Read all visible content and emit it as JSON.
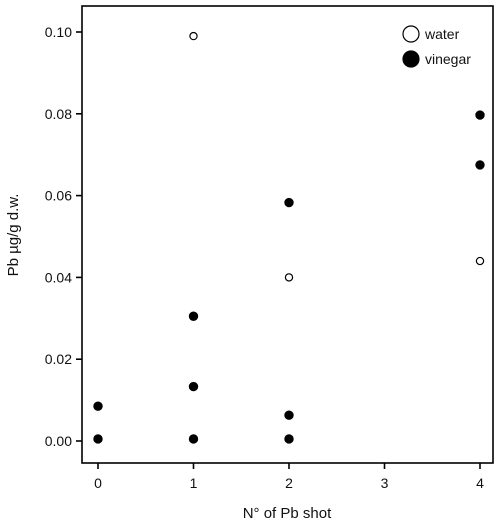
{
  "chart_data": {
    "type": "scatter",
    "title": "",
    "xlabel": "N° of Pb shot",
    "ylabel": "Pb µg/g d.w.",
    "xlim": [
      -0.2,
      4.1
    ],
    "ylim": [
      -0.005,
      0.105
    ],
    "x_ticks": [
      0,
      1,
      2,
      3,
      4
    ],
    "y_ticks": [
      0.0,
      0.02,
      0.04,
      0.06,
      0.08,
      0.1
    ],
    "y_tick_labels": [
      "0.00",
      "0.02",
      "0.04",
      "0.06",
      "0.08",
      "0.10"
    ],
    "grid": false,
    "legend_position": "top-right",
    "series": [
      {
        "name": "water",
        "marker": "open-circle",
        "color": "#000000",
        "points": [
          {
            "x": 1,
            "y": 0.099
          },
          {
            "x": 2,
            "y": 0.04
          },
          {
            "x": 4,
            "y": 0.044
          }
        ]
      },
      {
        "name": "vinegar",
        "marker": "filled-circle",
        "color": "#000000",
        "points": [
          {
            "x": 0,
            "y": 0.0085
          },
          {
            "x": 0,
            "y": 0.0005
          },
          {
            "x": 1,
            "y": 0.0305
          },
          {
            "x": 1,
            "y": 0.0133
          },
          {
            "x": 1,
            "y": 0.0005
          },
          {
            "x": 2,
            "y": 0.0583
          },
          {
            "x": 2,
            "y": 0.0063
          },
          {
            "x": 2,
            "y": 0.0005
          },
          {
            "x": 4,
            "y": 0.0797
          },
          {
            "x": 4,
            "y": 0.0675
          }
        ]
      }
    ]
  }
}
